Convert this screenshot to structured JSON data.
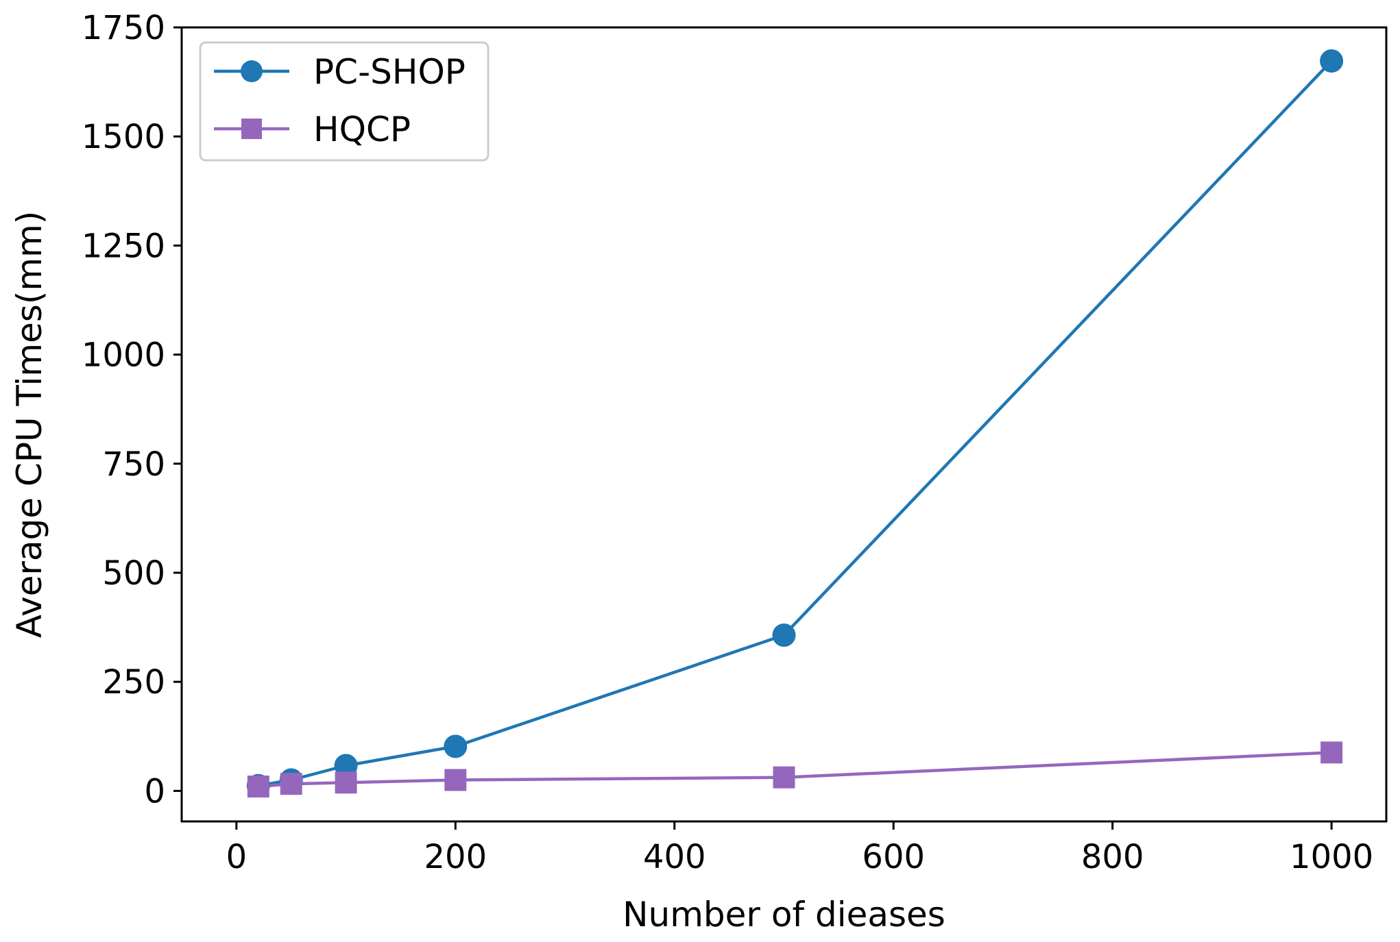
{
  "chart_data": {
    "type": "line",
    "title": "",
    "xlabel": "Number of dieases",
    "ylabel": "Average CPU Times(mm)",
    "xlim": [
      -50,
      1050
    ],
    "ylim": [
      -70,
      1750
    ],
    "xticks": [
      0,
      200,
      400,
      600,
      800,
      1000
    ],
    "yticks": [
      0,
      250,
      500,
      750,
      1000,
      1250,
      1500,
      1750
    ],
    "grid": false,
    "legend": {
      "position": "top-left"
    },
    "x": [
      20,
      50,
      100,
      200,
      500,
      1000
    ],
    "series": [
      {
        "name": "PC-SHOP",
        "marker": "circle",
        "color": "#1f77b4",
        "values": [
          12,
          25,
          58,
          102,
          357,
          1673
        ]
      },
      {
        "name": "HQCP",
        "marker": "square",
        "color": "#9467bd",
        "values": [
          10,
          16,
          19,
          25,
          31,
          88
        ]
      }
    ]
  }
}
